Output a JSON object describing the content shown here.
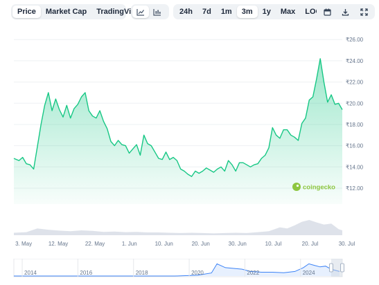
{
  "toolbar": {
    "metric_tabs": [
      "Price",
      "Market Cap",
      "TradingView"
    ],
    "active_metric": "Price",
    "chart_type_icons": [
      "line-chart-icon",
      "candlestick-chart-icon"
    ],
    "ranges": [
      "24h",
      "7d",
      "1m",
      "3m",
      "1y",
      "Max",
      "LOG"
    ],
    "active_range": "3m",
    "action_icons": [
      "calendar-icon",
      "download-icon",
      "expand-icon"
    ]
  },
  "watermark": "coingecko",
  "colors": {
    "line": "#16c784",
    "fill": "#16c784",
    "volume": "#d8dde6",
    "grid": "#eef0f3",
    "overview": "#3b82f6"
  },
  "chart_data": {
    "type": "area",
    "y_tick_labels": [
      "₹26.00",
      "₹24.00",
      "₹22.00",
      "₹20.00",
      "₹18.00",
      "₹16.00",
      "₹14.00",
      "₹12.00"
    ],
    "y_ticks": [
      26,
      24,
      22,
      20,
      18,
      16,
      14,
      12
    ],
    "ylim": [
      10.5,
      26.6
    ],
    "x_tick_labels": [
      "3. May",
      "12. May",
      "22. May",
      "1. Jun",
      "10. Jun",
      "20. Jun",
      "30. Jun",
      "10. Jul",
      "20. Jul",
      "30. Jul"
    ],
    "x_tick_days": [
      0,
      9,
      19,
      29,
      38,
      48,
      58,
      68,
      78,
      88
    ],
    "grid": true,
    "series": [
      {
        "x": [
          -0.4,
          1,
          2,
          3,
          4,
          5,
          6,
          7,
          8,
          9,
          10,
          11,
          12,
          13,
          14,
          15,
          16,
          17,
          18,
          19,
          20,
          21,
          22,
          23,
          24,
          25,
          26,
          27,
          28,
          29,
          30,
          31,
          32,
          33,
          34,
          35,
          36,
          37,
          38,
          39,
          40,
          41,
          42,
          43,
          44,
          45,
          46,
          47,
          48,
          49,
          50,
          51,
          52,
          53,
          54,
          55,
          56,
          57,
          58,
          59,
          60,
          61,
          62,
          63,
          64,
          65,
          66,
          67,
          68,
          69,
          70,
          71,
          72,
          73,
          74,
          75,
          76,
          77,
          78,
          79,
          80,
          81,
          82,
          83,
          84,
          85,
          86,
          87,
          88,
          89
        ],
        "values": [
          14.8,
          14.6,
          14.9,
          14.3,
          14.2,
          13.8,
          15.9,
          18.0,
          19.8,
          21.0,
          19.3,
          20.4,
          19.4,
          18.7,
          19.8,
          18.6,
          19.5,
          19.9,
          20.6,
          21.0,
          19.3,
          18.8,
          18.6,
          19.3,
          18.3,
          17.6,
          16.4,
          16.0,
          16.5,
          16.1,
          16.0,
          15.3,
          15.7,
          16.1,
          15.1,
          17.0,
          16.2,
          16.0,
          15.4,
          14.8,
          14.7,
          15.4,
          14.7,
          14.9,
          14.6,
          13.8,
          13.6,
          13.3,
          13.1,
          13.6,
          13.4,
          13.6,
          13.9,
          13.7,
          13.5,
          13.8,
          14.0,
          13.6,
          14.6,
          14.2,
          13.6,
          14.4,
          14.4,
          14.2,
          14.0,
          14.2,
          14.3,
          14.8,
          15.1,
          15.8,
          17.7,
          17.0,
          16.7,
          17.5,
          17.5,
          17.0,
          16.8,
          16.5,
          18.1,
          18.6,
          20.3,
          20.6,
          22.3,
          24.2,
          22.0,
          20.1,
          20.8,
          19.9,
          20.0,
          19.4
        ]
      }
    ]
  },
  "volume_data": {
    "x": [
      -0.4,
      3,
      6,
      9,
      12,
      15,
      18,
      21,
      24,
      27,
      30,
      33,
      36,
      39,
      42,
      45,
      48,
      51,
      54,
      57,
      60,
      63,
      66,
      69,
      72,
      74,
      76,
      78,
      80,
      82,
      84,
      86,
      88,
      89
    ],
    "values": [
      0.8,
      1.0,
      2.2,
      1.8,
      1.5,
      1.3,
      1.6,
      1.4,
      1.1,
      1.2,
      1.0,
      1.1,
      0.9,
      0.9,
      0.8,
      0.7,
      0.8,
      0.7,
      0.6,
      0.7,
      0.8,
      0.7,
      1.0,
      1.3,
      2.6,
      2.2,
      3.2,
      4.4,
      5.0,
      4.2,
      3.5,
      3.8,
      2.0,
      1.6
    ]
  },
  "overview": {
    "year_labels": [
      "2014",
      "2016",
      "2018",
      "2020",
      "2022",
      "2024"
    ],
    "year_values": [
      2014,
      2016,
      2018,
      2020,
      2022,
      2024
    ],
    "xlim": [
      2013.7,
      2025.5
    ],
    "series_x": [
      2013.7,
      2014.5,
      2015.5,
      2016.5,
      2017.5,
      2018.5,
      2019.5,
      2020.3,
      2020.8,
      2021.0,
      2021.3,
      2021.6,
      2021.9,
      2022.2,
      2022.6,
      2023.0,
      2023.4,
      2023.8,
      2024.1,
      2024.3,
      2024.5,
      2024.7,
      2024.9,
      2025.1,
      2025.4
    ],
    "series_values": [
      0,
      0,
      0,
      0,
      0,
      0,
      0,
      0.05,
      0.2,
      0.8,
      0.55,
      0.5,
      0.45,
      0.3,
      0.25,
      0.25,
      0.22,
      0.3,
      0.55,
      0.8,
      0.7,
      0.6,
      0.65,
      0.45,
      0.3
    ],
    "window": [
      2025.1,
      2025.5
    ]
  }
}
